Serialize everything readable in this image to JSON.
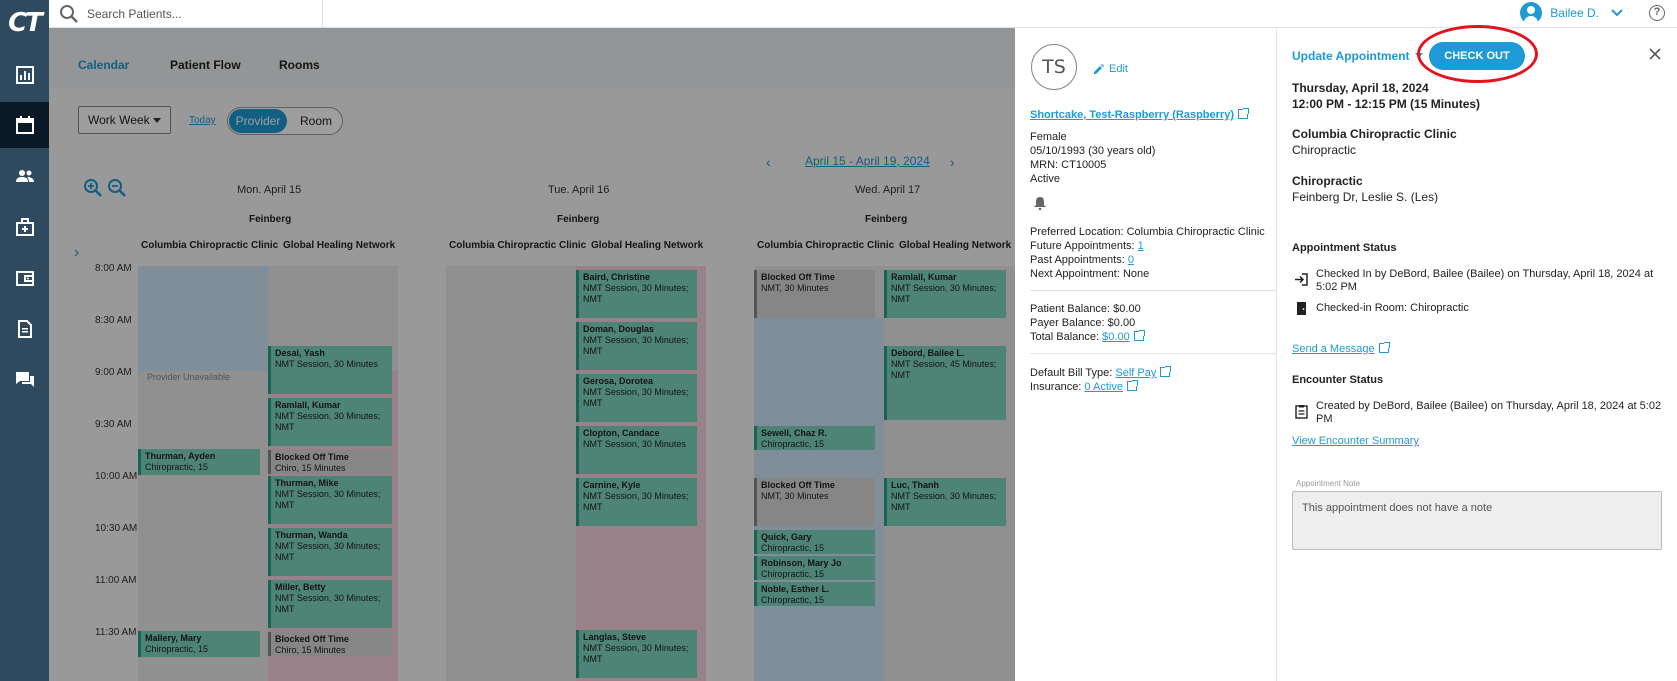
{
  "logo_text": "CT",
  "nav": {
    "items": [
      {
        "icon": "chart-icon"
      },
      {
        "icon": "calendar-icon",
        "active": true
      },
      {
        "icon": "users-icon"
      },
      {
        "icon": "medical-bag-icon"
      },
      {
        "icon": "wallet-icon"
      },
      {
        "icon": "document-icon"
      },
      {
        "icon": "chat-icon"
      }
    ]
  },
  "topbar": {
    "search_placeholder": "Search Patients...",
    "user_name": "Bailee D.",
    "help": "?"
  },
  "calendar": {
    "tabs": [
      "Calendar",
      "Patient Flow",
      "Rooms"
    ],
    "view_select": "Work Week",
    "today_label": "Today",
    "toggle_on": "Provider",
    "toggle_off": "Room",
    "date_range": "April 15 - April 19, 2024",
    "days": [
      "Mon. April 15",
      "Tue. April 16",
      "Wed. April 17"
    ],
    "provider": "Feinberg",
    "locations": [
      "Columbia Chiropractic Clinic",
      "Global Healing Network"
    ],
    "times": [
      "8:00 AM",
      "8:30 AM",
      "9:00 AM",
      "9:30 AM",
      "10:00 AM",
      "10:30 AM",
      "11:00 AM",
      "11:30 AM"
    ],
    "unavailable": "Provider Unavailable",
    "appointments": {
      "mon_col": [
        {
          "name": "Thurman, Ayden",
          "detail": "Chiropractic, 15"
        },
        {
          "name": "Mallery, Mary",
          "detail": "Chiropractic, 15"
        }
      ],
      "mon_ghn": [
        {
          "name": "Desai, Yash",
          "detail": "NMT Session, 30 Minutes"
        },
        {
          "name": "Ramlall, Kumar",
          "detail": "NMT Session, 30 Minutes; NMT"
        },
        {
          "name": "Blocked Off Time",
          "detail": "Chiro, 15 Minutes"
        },
        {
          "name": "Thurman, Mike",
          "detail": "NMT Session, 30 Minutes; NMT"
        },
        {
          "name": "Thurman, Wanda",
          "detail": "NMT Session, 30 Minutes; NMT"
        },
        {
          "name": "Miller, Betty",
          "detail": "NMT Session, 30 Minutes; NMT"
        },
        {
          "name": "Blocked Off Time",
          "detail": "Chiro, 15 Minutes"
        }
      ],
      "tue_ghn": [
        {
          "name": "Baird, Christine",
          "detail": "NMT Session, 30 Minutes; NMT"
        },
        {
          "name": "Doman, Douglas",
          "detail": "NMT Session, 30 Minutes; NMT"
        },
        {
          "name": "Gerosa, Dorotea",
          "detail": "NMT Session, 30 Minutes; NMT"
        },
        {
          "name": "Clopton, Candace",
          "detail": "NMT Session, 30 Minutes"
        },
        {
          "name": "Carnine, Kyle",
          "detail": "NMT Session, 30 Minutes; NMT"
        },
        {
          "name": "Langlas, Steve",
          "detail": "NMT Session, 30 Minutes; NMT"
        }
      ],
      "wed_col": [
        {
          "name": "Blocked Off Time",
          "detail": "NMT, 30 Minutes"
        },
        {
          "name": "Sewell, Chaz R.",
          "detail": "Chiropractic, 15"
        },
        {
          "name": "Blocked Off Time",
          "detail": "NMT, 30 Minutes"
        },
        {
          "name": "Quick, Gary",
          "detail": "Chiropractic, 15"
        },
        {
          "name": "Robinson, Mary Jo",
          "detail": "Chiropractic, 15"
        },
        {
          "name": "Noble, Esther L.",
          "detail": "Chiropractic, 15"
        }
      ],
      "wed_ghn": [
        {
          "name": "Ramlall, Kumar",
          "detail": "NMT Session, 30 Minutes; NMT"
        },
        {
          "name": "Debord, Bailee L.",
          "detail": "NMT Session, 45 Minutes; NMT"
        },
        {
          "name": "Luc, Thanh",
          "detail": "NMT Session, 30 Minutes; NMT"
        }
      ]
    }
  },
  "patient": {
    "initials": "TS",
    "edit": "Edit",
    "name": "Shortcake, Test-Raspberry (Raspberry)",
    "gender": "Female",
    "dob": "05/10/1993 (30 years old)",
    "mrn": "MRN: CT10005",
    "status": "Active",
    "preferred_location": "Preferred Location: Columbia Chiropractic Clinic",
    "future_label": "Future Appointments: ",
    "future_value": "1",
    "past_label": "Past Appointments: ",
    "past_value": "0",
    "next_appt": "Next Appointment: None",
    "patient_balance": "Patient Balance: $0.00",
    "payer_balance": "Payer Balance: $0.00",
    "total_label": "Total Balance: ",
    "total_value": "$0.00",
    "bill_label": "Default Bill Type: ",
    "bill_value": "Self Pay",
    "ins_label": "Insurance: ",
    "ins_value": "0 Active"
  },
  "appointment": {
    "update_label": "Update Appointment",
    "checkout_label": "CHECK OUT",
    "date": "Thursday, April 18, 2024",
    "time": "12:00 PM - 12:15 PM (15 Minutes)",
    "clinic": "Columbia Chiropractic Clinic",
    "clinic_type": "Chiropractic",
    "service": "Chiropractic",
    "provider": "Feinberg Dr, Leslie S. (Les)",
    "status_heading": "Appointment Status",
    "checked_in_l1": "Checked In by DeBord, Bailee (Bailee) on Thursday, April 18, 2024 at",
    "checked_in_l2": "5:02 PM",
    "checked_room": "Checked-in Room: Chiropractic",
    "send_message": "Send a Message",
    "encounter_heading": "Encounter Status",
    "created_l1": "Created by DeBord, Bailee (Bailee) on Thursday, April 18, 2024 at 5:02",
    "created_l2": "PM",
    "view_encounter": "View Encounter Summary",
    "note_label": "Appointment Note",
    "note_text": "This appointment does not have a note"
  },
  "colors": {
    "accent": "#1e9ad6",
    "nav_bg": "#2f4a5e",
    "highlight_circle": "#e1141e",
    "appt_teal": "#7fd5bd"
  }
}
